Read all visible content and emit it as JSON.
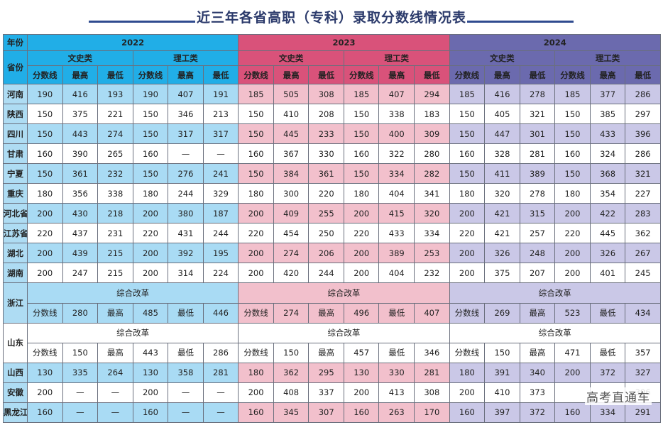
{
  "title": "近三年各省高职（专科）录取分数线情况表",
  "header": {
    "corner_top": "年份",
    "corner_bottom": "省份",
    "years": [
      "2022",
      "2023",
      "2024"
    ],
    "categories": [
      "文史类",
      "理工类"
    ],
    "cols": [
      "分数线",
      "最高",
      "最低"
    ]
  },
  "colors": {
    "y2022_header": "#21aee7",
    "y2023_header": "#d9527a",
    "y2024_header": "#6b6aae",
    "y2022_fill": "#a9dbf4",
    "y2023_fill": "#f2c0cc",
    "y2024_fill": "#cac8e7"
  },
  "rows_top": [
    {
      "province": "河南",
      "values": [
        "190",
        "416",
        "193",
        "190",
        "407",
        "191",
        "185",
        "505",
        "308",
        "185",
        "407",
        "294",
        "185",
        "416",
        "278",
        "185",
        "377",
        "286"
      ]
    },
    {
      "province": "陕西",
      "values": [
        "150",
        "375",
        "221",
        "150",
        "346",
        "213",
        "150",
        "410",
        "208",
        "150",
        "338",
        "183",
        "150",
        "405",
        "321",
        "150",
        "385",
        "297"
      ]
    },
    {
      "province": "四川",
      "values": [
        "150",
        "443",
        "274",
        "150",
        "317",
        "317",
        "150",
        "445",
        "233",
        "150",
        "400",
        "309",
        "150",
        "447",
        "301",
        "150",
        "433",
        "396"
      ]
    },
    {
      "province": "甘肃",
      "values": [
        "160",
        "390",
        "265",
        "160",
        "—",
        "—",
        "160",
        "367",
        "330",
        "160",
        "322",
        "280",
        "160",
        "328",
        "281",
        "160",
        "324",
        "286"
      ]
    },
    {
      "province": "宁夏",
      "values": [
        "150",
        "361",
        "232",
        "150",
        "276",
        "241",
        "150",
        "384",
        "361",
        "150",
        "334",
        "282",
        "150",
        "411",
        "389",
        "150",
        "368",
        "321"
      ]
    },
    {
      "province": "重庆",
      "values": [
        "180",
        "356",
        "338",
        "180",
        "244",
        "329",
        "180",
        "300",
        "220",
        "180",
        "404",
        "341",
        "180",
        "320",
        "278",
        "180",
        "354",
        "227"
      ]
    },
    {
      "province": "河北省",
      "values": [
        "200",
        "430",
        "218",
        "200",
        "380",
        "187",
        "200",
        "409",
        "255",
        "200",
        "415",
        "320",
        "200",
        "421",
        "315",
        "200",
        "422",
        "283"
      ]
    },
    {
      "province": "江苏省",
      "values": [
        "220",
        "437",
        "231",
        "220",
        "431",
        "244",
        "220",
        "454",
        "250",
        "220",
        "433",
        "334",
        "220",
        "421",
        "257",
        "220",
        "445",
        "362"
      ]
    },
    {
      "province": "湖北",
      "values": [
        "200",
        "439",
        "215",
        "200",
        "392",
        "195",
        "200",
        "274",
        "206",
        "200",
        "389",
        "253",
        "200",
        "326",
        "248",
        "200",
        "326",
        "267"
      ]
    },
    {
      "province": "湖南",
      "values": [
        "200",
        "247",
        "215",
        "200",
        "314",
        "224",
        "200",
        "420",
        "244",
        "200",
        "404",
        "232",
        "200",
        "375",
        "207",
        "200",
        "401",
        "245"
      ]
    }
  ],
  "reform_label": "综合改革",
  "zhejiang": {
    "province": "浙江",
    "years": [
      [
        "分数线",
        "280",
        "最高",
        "485",
        "最低",
        "446"
      ],
      [
        "分数线",
        "274",
        "最高",
        "496",
        "最低",
        "407"
      ],
      [
        "分数线",
        "269",
        "最高",
        "523",
        "最低",
        "434"
      ]
    ]
  },
  "shandong": {
    "province": "山东",
    "years": [
      [
        "分数线",
        "150",
        "最高",
        "443",
        "最低",
        "286"
      ],
      [
        "分数线",
        "150",
        "最高",
        "457",
        "最低",
        "346"
      ],
      [
        "分数线",
        "150",
        "最高",
        "471",
        "最低",
        "357"
      ]
    ]
  },
  "rows_bottom": [
    {
      "province": "山西",
      "values": [
        "130",
        "335",
        "264",
        "130",
        "358",
        "281",
        "180",
        "362",
        "295",
        "130",
        "330",
        "281",
        "180",
        "391",
        "340",
        "200",
        "372",
        "327"
      ]
    },
    {
      "province": "安徽",
      "values": [
        "200",
        "—",
        "—",
        "200",
        "—",
        "—",
        "200",
        "408",
        "337",
        "200",
        "413",
        "308",
        "200",
        "410",
        "373",
        "",
        "",
        "396"
      ]
    },
    {
      "province": "黑龙江",
      "values": [
        "160",
        "—",
        "—",
        "160",
        "—",
        "—",
        "160",
        "345",
        "307",
        "160",
        "263",
        "170",
        "160",
        "397",
        "372",
        "160",
        "334",
        "291"
      ]
    }
  ],
  "watermark": "高考直通车"
}
